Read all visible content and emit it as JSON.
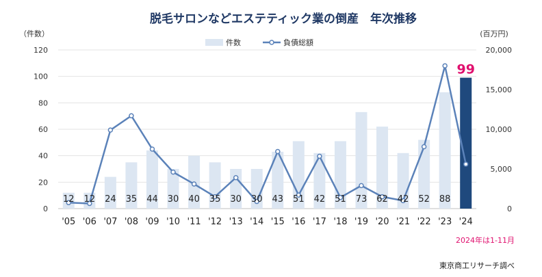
{
  "chart_data": {
    "type": "bar",
    "title": "脱毛サロンなどエステティック業の倒産　年次推移",
    "left_axis_unit": "（件数）",
    "right_axis_unit": "(百万円)",
    "left_ticks": [
      "0",
      "20",
      "40",
      "60",
      "80",
      "100",
      "120"
    ],
    "right_ticks": [
      "0",
      "5,000",
      "10,000",
      "15,000",
      "20,000"
    ],
    "ylim_left": [
      0,
      120
    ],
    "ylim_right": [
      0,
      20000
    ],
    "categories": [
      "'05",
      "'06",
      "'07",
      "'08",
      "'09",
      "'10",
      "'11",
      "'12",
      "'13",
      "'14",
      "'15",
      "'16",
      "'17",
      "'18",
      "'19",
      "'20",
      "'21",
      "'22",
      "'23",
      "'24"
    ],
    "series": [
      {
        "name": "件数",
        "type": "bar",
        "axis": "left",
        "values": [
          12,
          12,
          24,
          35,
          44,
          30,
          40,
          35,
          30,
          30,
          43,
          51,
          42,
          51,
          73,
          62,
          42,
          52,
          88,
          99
        ]
      },
      {
        "name": "負債総額",
        "type": "line",
        "axis": "right",
        "values": [
          750,
          650,
          9900,
          11700,
          7500,
          4600,
          3100,
          1500,
          3900,
          900,
          7200,
          1700,
          6600,
          1400,
          2900,
          1500,
          1000,
          7800,
          18000,
          5600
        ]
      }
    ],
    "highlight_label": "99",
    "legend_position": "top-center",
    "grid": true,
    "note": "2024年は1-11月",
    "source": "東京商工リサーチ調べ",
    "colors": {
      "bar": "#dce6f2",
      "bar_highlight": "#1f497d",
      "line": "#5b82b9",
      "highlight_text": "#e0106e"
    }
  }
}
